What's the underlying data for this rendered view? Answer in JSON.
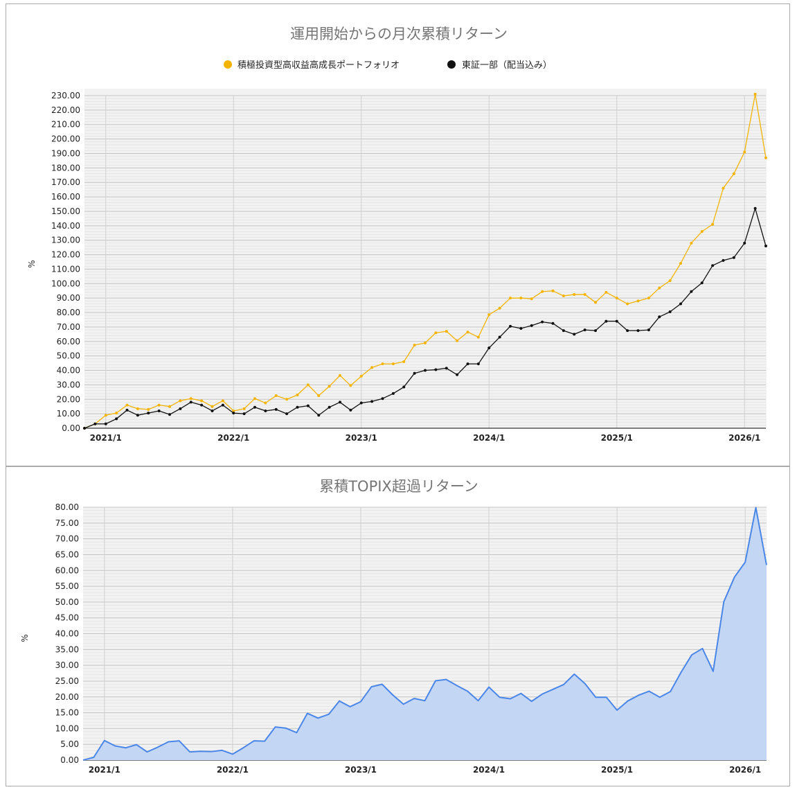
{
  "chart_data": [
    {
      "type": "line",
      "title": "運用開始からの月次累積リターン",
      "xlabel": "",
      "ylabel": "%",
      "ylim": [
        0,
        230
      ],
      "ytick_step": 10,
      "grid": true,
      "legend": "top",
      "x_ticks": [
        "2021/1",
        "2022/1",
        "2023/1",
        "2024/1",
        "2025/1",
        "2026/1"
      ],
      "x_range": [
        "2020/11",
        "2026/3"
      ],
      "series": [
        {
          "name": "積極投資型高収益高成長ポートフォリオ",
          "color": "#f5b400",
          "values": [
            0,
            3,
            9,
            10.5,
            16,
            13.5,
            13,
            16,
            15,
            19,
            20.5,
            19,
            15,
            19,
            12,
            13.5,
            20.5,
            17.5,
            22.5,
            20,
            23,
            30,
            22.5,
            29,
            36.5,
            29.5,
            36,
            42,
            44.5,
            44.5,
            46,
            57.5,
            59,
            66,
            67,
            60.5,
            66.5,
            63,
            78.5,
            83,
            90,
            90,
            89.5,
            94.5,
            95,
            91.5,
            92.5,
            92.5,
            87,
            94,
            90,
            86,
            88,
            90,
            97,
            102,
            114,
            128,
            136,
            141,
            166,
            176,
            191,
            231,
            187
          ]
        },
        {
          "name": "東証一部（配当込み）",
          "color": "#111111",
          "values": [
            0,
            3,
            3,
            6.5,
            12.5,
            9,
            10.5,
            12,
            9.5,
            13.5,
            18,
            16,
            12,
            16,
            10.5,
            10,
            14.5,
            12,
            13,
            10,
            14.5,
            15.5,
            9,
            14.5,
            18,
            12.5,
            17.5,
            18.5,
            20.5,
            24,
            28.5,
            38,
            40,
            40.5,
            41.5,
            37,
            44.5,
            44.5,
            55.5,
            63,
            70.5,
            69,
            71,
            73.5,
            72.5,
            67.5,
            65,
            68,
            67.5,
            74,
            74,
            67.5,
            67.5,
            68,
            77,
            80.5,
            86,
            94.5,
            100.5,
            112.5,
            116,
            118,
            128,
            152,
            126
          ]
        }
      ]
    },
    {
      "type": "area",
      "title": "累積TOPIX超過リターン",
      "xlabel": "",
      "ylabel": "%",
      "ylim": [
        0,
        80
      ],
      "ytick_step": 5,
      "grid": true,
      "x_ticks": [
        "2021/1",
        "2022/1",
        "2023/1",
        "2024/1",
        "2025/1",
        "2026/1"
      ],
      "x_range": [
        "2020/11",
        "2026/3"
      ],
      "series": [
        {
          "name": "",
          "color": "#4a86e8",
          "fill": "#c3d7f5",
          "values": [
            0,
            0.9,
            6.2,
            4.5,
            3.9,
            4.9,
            2.6,
            4.1,
            5.8,
            6.1,
            2.6,
            2.8,
            2.7,
            3.1,
            1.9,
            3.9,
            6.1,
            6.0,
            10.5,
            10.1,
            8.7,
            14.8,
            13.3,
            14.5,
            18.7,
            16.9,
            18.5,
            23.2,
            24.0,
            20.6,
            17.7,
            19.5,
            18.8,
            25.1,
            25.5,
            23.6,
            21.8,
            18.8,
            23.1,
            19.9,
            19.4,
            21.1,
            18.6,
            20.9,
            22.4,
            23.9,
            27.2,
            24.2,
            19.9,
            19.9,
            15.8,
            18.7,
            20.5,
            21.8,
            19.9,
            21.7,
            27.8,
            33.3,
            35.3,
            28.1,
            50.1,
            57.9,
            62.6,
            79.9,
            61.7
          ]
        }
      ]
    }
  ]
}
